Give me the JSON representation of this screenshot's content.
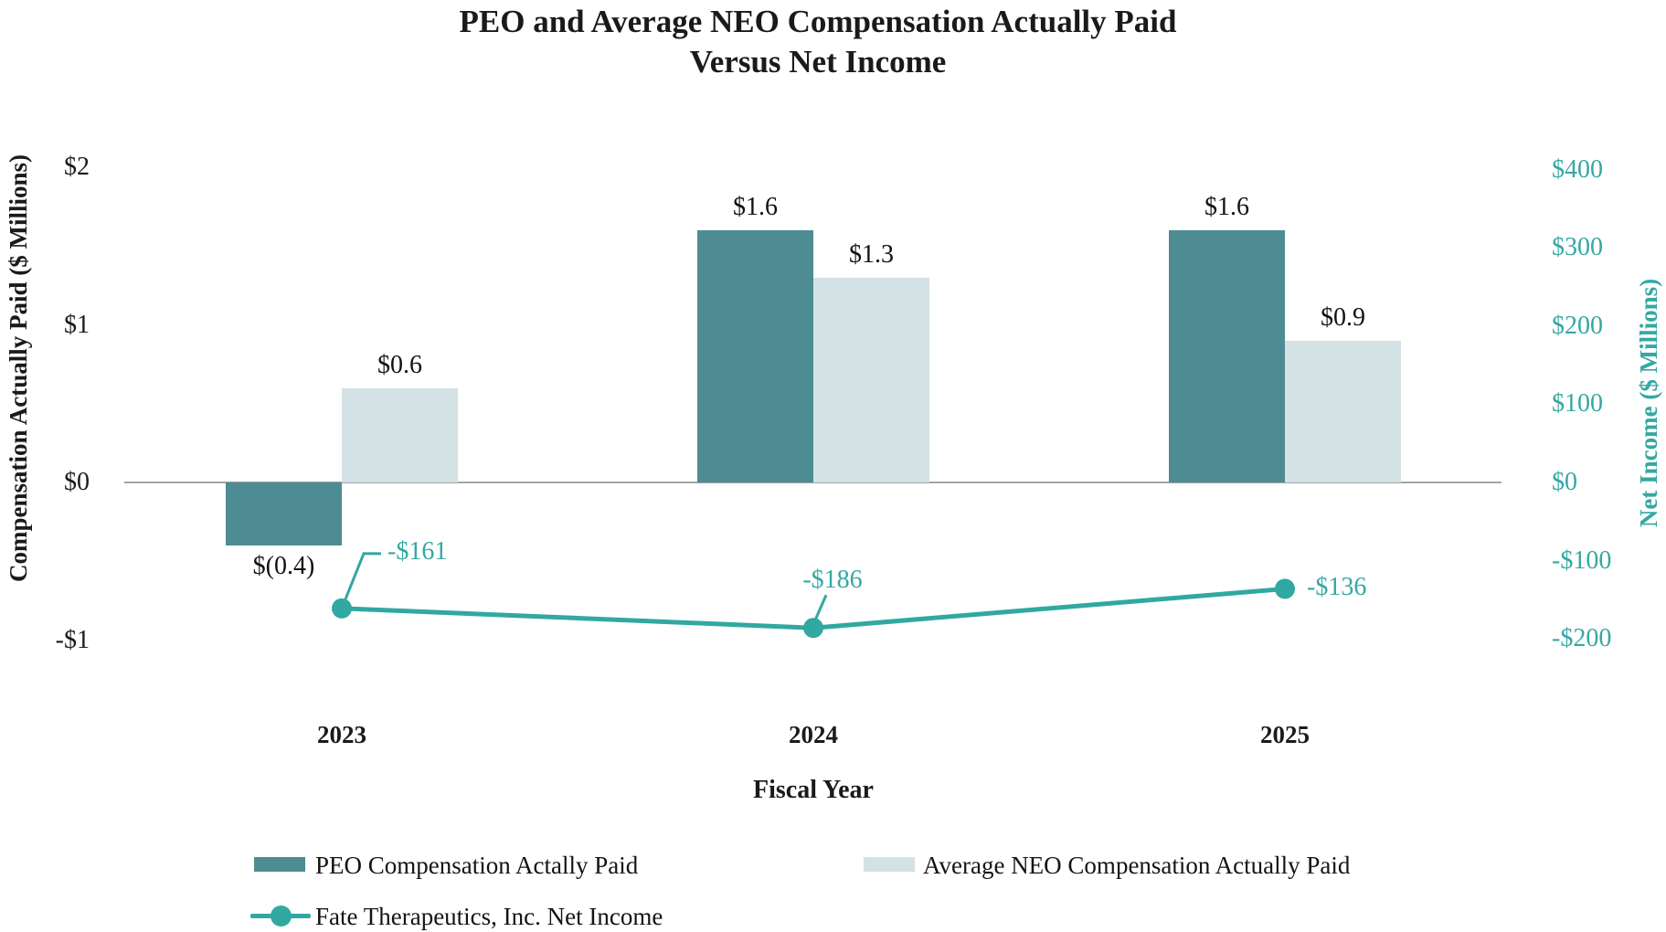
{
  "title": {
    "line1": "PEO and Average NEO Compensation Actually Paid",
    "line2": "Versus Net Income"
  },
  "axes": {
    "left": {
      "title": "Compensation Actually Paid ($ Millions)",
      "ticks": [
        {
          "label": "$2",
          "value": 2
        },
        {
          "label": "$1",
          "value": 1
        },
        {
          "label": "$0",
          "value": 0
        },
        {
          "label": "-$1",
          "value": -1
        }
      ]
    },
    "right": {
      "title": "Net Income ($ Millions)",
      "ticks": [
        {
          "label": "$400",
          "value": 400
        },
        {
          "label": "$300",
          "value": 300
        },
        {
          "label": "$200",
          "value": 200
        },
        {
          "label": "$100",
          "value": 100
        },
        {
          "label": "$0",
          "value": 0
        },
        {
          "label": "-$100",
          "value": -100
        },
        {
          "label": "-$200",
          "value": -200
        }
      ]
    },
    "x": {
      "title": "Fiscal Year",
      "categories": [
        "2023",
        "2024",
        "2025"
      ]
    }
  },
  "legend": [
    {
      "label": "PEO Compensation Actally Paid",
      "swatch": "bar-dark"
    },
    {
      "label": "Average NEO Compensation Actually Paid",
      "swatch": "bar-light"
    },
    {
      "label": "Fate Therapeutics, Inc. Net Income",
      "swatch": "line-marker"
    }
  ],
  "colors": {
    "peo_bar": "#4d8c93",
    "neo_bar": "#d4e1e5",
    "net_income_line": "#31a8a1",
    "teal_text": "#35a8a2",
    "zero_line": "#a3a3a3",
    "text": "#1a1a1a"
  },
  "chart_data": {
    "type": "bar",
    "subtype": "clustered-bars-with-line-dual-axis",
    "title": "PEO and Average NEO Compensation Actually Paid Versus Net Income",
    "xlabel": "Fiscal Year",
    "ylabel_left": "Compensation Actually Paid ($ Millions)",
    "ylabel_right": "Net Income ($ Millions)",
    "categories": [
      "2023",
      "2024",
      "2025"
    ],
    "left_axis_range": [
      -1,
      2
    ],
    "right_axis_range": [
      -200,
      400
    ],
    "grid": false,
    "legend_position": "bottom-left",
    "series": [
      {
        "name": "PEO Compensation Actally Paid",
        "type": "bar",
        "axis": "left",
        "values": [
          -0.4,
          1.6,
          1.6
        ],
        "labels": [
          "$(0.4)",
          "$1.6",
          "$1.6"
        ],
        "color": "#4d8c93"
      },
      {
        "name": "Average NEO Compensation Actually Paid",
        "type": "bar",
        "axis": "left",
        "values": [
          0.6,
          1.3,
          0.9
        ],
        "labels": [
          "$0.6",
          "$1.3",
          "$0.9"
        ],
        "color": "#d4e1e5"
      },
      {
        "name": "Fate Therapeutics, Inc. Net Income",
        "type": "line",
        "axis": "right",
        "values": [
          -161,
          -186,
          -136
        ],
        "labels": [
          "-$161",
          "-$186",
          "-$136"
        ],
        "color": "#31a8a1",
        "marker": "circle"
      }
    ]
  }
}
